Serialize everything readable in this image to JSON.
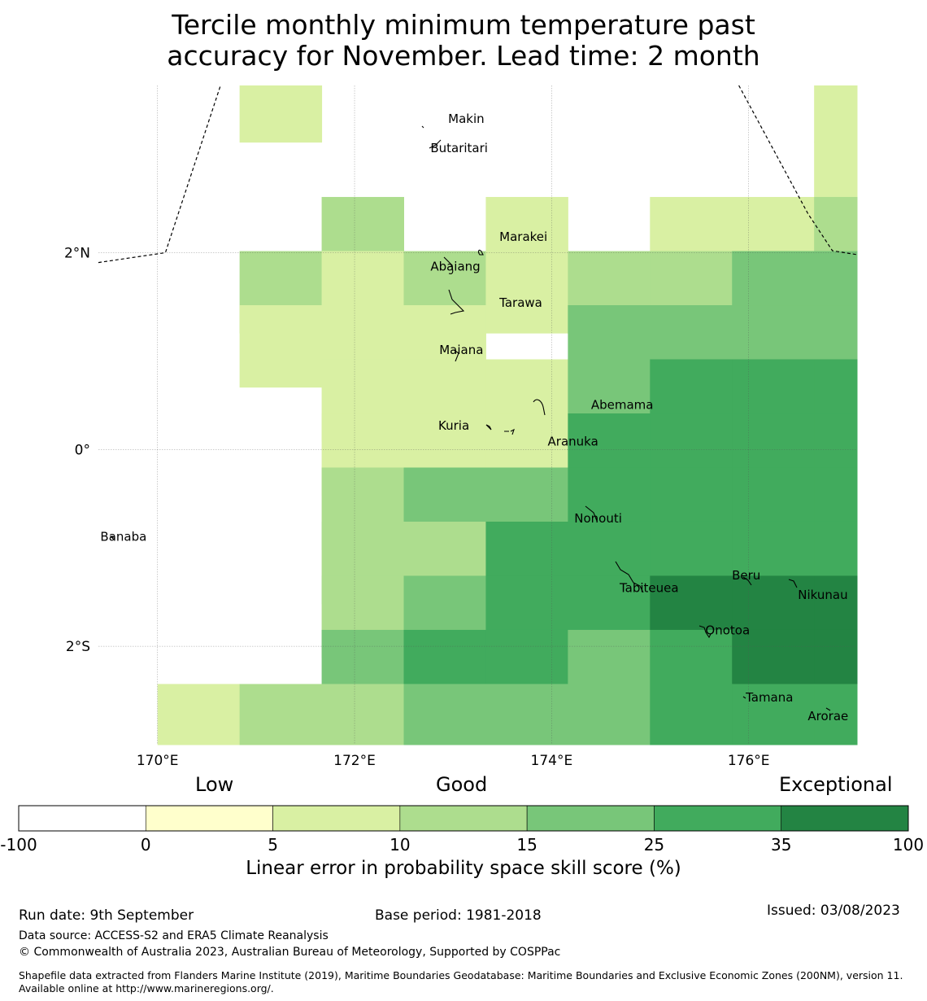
{
  "title": {
    "line1": "Tercile monthly minimum temperature past",
    "line2": "accuracy for November. Lead time: 2 month"
  },
  "map": {
    "lon_range": [
      169.4,
      177.1
    ],
    "lat_range": [
      -3.0,
      3.7
    ],
    "cell_size_deg": 0.833,
    "x_ticks": [
      {
        "value": 170,
        "label": "170°E"
      },
      {
        "value": 172,
        "label": "172°E"
      },
      {
        "value": 174,
        "label": "174°E"
      },
      {
        "value": 176,
        "label": "176°E"
      }
    ],
    "y_ticks": [
      {
        "value": 2,
        "label": "2°N"
      },
      {
        "value": 0,
        "label": "0°"
      },
      {
        "value": -2,
        "label": "2°S"
      }
    ],
    "grid_rows": [
      {
        "lat": 3.54,
        "cells": [
          null,
          2,
          null,
          null,
          null,
          null,
          null,
          null,
          2
        ]
      },
      {
        "lat": 2.71,
        "cells": [
          null,
          null,
          null,
          null,
          null,
          null,
          null,
          null,
          2
        ]
      },
      {
        "lat": 2.15,
        "cells": [
          null,
          null,
          3,
          null,
          2,
          null,
          2,
          2,
          3
        ]
      },
      {
        "lat": 1.6,
        "cells": [
          null,
          3,
          2,
          3,
          2,
          3,
          3,
          4,
          4
        ]
      },
      {
        "lat": 1.05,
        "cells": [
          null,
          2,
          2,
          2,
          null,
          4,
          4,
          4,
          4
        ]
      },
      {
        "lat": 0.5,
        "cells": [
          null,
          null,
          2,
          2,
          2,
          4,
          5,
          5,
          5
        ]
      },
      {
        "lat": -0.05,
        "cells": [
          null,
          null,
          2,
          2,
          2,
          5,
          5,
          5,
          5
        ]
      },
      {
        "lat": -0.6,
        "cells": [
          null,
          null,
          3,
          4,
          4,
          5,
          5,
          5,
          5
        ]
      },
      {
        "lat": -1.15,
        "cells": [
          null,
          null,
          3,
          3,
          5,
          5,
          5,
          5,
          5
        ]
      },
      {
        "lat": -1.7,
        "cells": [
          null,
          null,
          3,
          4,
          5,
          5,
          6,
          6,
          6
        ]
      },
      {
        "lat": -2.25,
        "cells": [
          null,
          null,
          4,
          5,
          5,
          4,
          5,
          6,
          6
        ]
      },
      {
        "lat": -2.8,
        "cells": [
          2,
          3,
          3,
          4,
          4,
          4,
          5,
          5,
          5
        ]
      }
    ],
    "places": [
      {
        "name": "Makin",
        "lon": 172.95,
        "lat": 3.32
      },
      {
        "name": "Butaritari",
        "lon": 172.77,
        "lat": 3.02
      },
      {
        "name": "Marakei",
        "lon": 173.47,
        "lat": 2.12
      },
      {
        "name": "Abaiang",
        "lon": 172.77,
        "lat": 1.82
      },
      {
        "name": "Tarawa",
        "lon": 173.47,
        "lat": 1.45
      },
      {
        "name": "Maiana",
        "lon": 172.86,
        "lat": 0.97
      },
      {
        "name": "Abemama",
        "lon": 174.4,
        "lat": 0.41
      },
      {
        "name": "Kuria",
        "lon": 172.85,
        "lat": 0.2
      },
      {
        "name": "Aranuka",
        "lon": 173.96,
        "lat": 0.04
      },
      {
        "name": "Banaba",
        "lon": 169.42,
        "lat": -0.93
      },
      {
        "name": "Nonouti",
        "lon": 174.23,
        "lat": -0.74
      },
      {
        "name": "Beru",
        "lon": 175.83,
        "lat": -1.32
      },
      {
        "name": "Tabiteuea",
        "lon": 174.69,
        "lat": -1.45
      },
      {
        "name": "Nikunau",
        "lon": 176.5,
        "lat": -1.52
      },
      {
        "name": "Onotoa",
        "lon": 175.56,
        "lat": -1.88
      },
      {
        "name": "Tamana",
        "lon": 175.97,
        "lat": -2.56
      },
      {
        "name": "Arorae",
        "lon": 176.6,
        "lat": -2.75
      }
    ],
    "eez_left_line": [
      [
        169.4,
        1.9
      ],
      [
        170.08,
        2.0
      ],
      [
        170.64,
        3.7
      ]
    ],
    "eez_right_line": [
      [
        175.9,
        3.7
      ],
      [
        176.6,
        2.4
      ],
      [
        176.85,
        2.02
      ],
      [
        177.1,
        1.98
      ]
    ]
  },
  "colorbar": {
    "categories": [
      "Low",
      "Good",
      "Exceptional"
    ],
    "bounds": [
      "-100",
      "0",
      "5",
      "10",
      "15",
      "25",
      "35",
      "100"
    ],
    "colors": [
      "#ffffff",
      "#ffffcc",
      "#d9f0a3",
      "#addd8e",
      "#78c679",
      "#41ab5d",
      "#238443"
    ],
    "label": "Linear error in probability space skill score (%)"
  },
  "footer": {
    "run_date": "Run date: 9th September",
    "base_period": "Base period: 1981-2018",
    "issued": "Issued: 03/08/2023",
    "data_source": "Data source: ACCESS-S2 and ERA5 Climate Reanalysis",
    "copyright": "© Commonwealth of Australia 2023, Australian Bureau of Meteorology, Supported by COSPPac",
    "shapefile": "Shapefile data extracted from Flanders Marine Institute (2019), Maritime Boundaries Geodatabase: Maritime Boundaries and Exclusive Economic Zones (200NM), version 11. Available online at http://www.marineregions.org/."
  }
}
